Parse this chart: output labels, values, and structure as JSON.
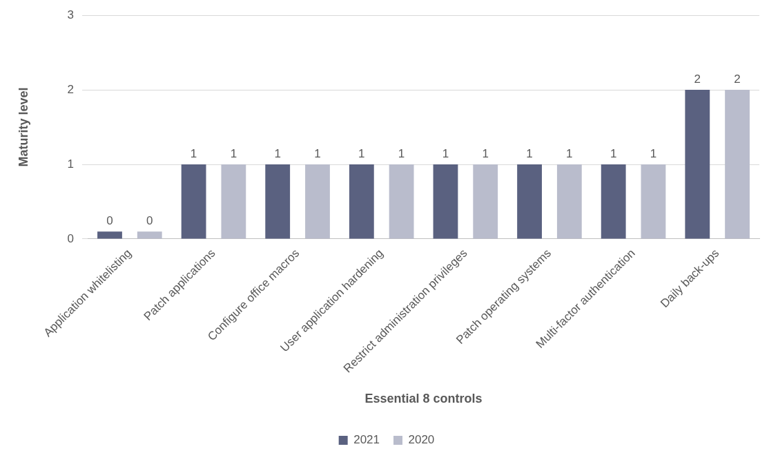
{
  "chart_data": {
    "type": "bar",
    "xlabel": "Essential 8 controls",
    "ylabel": "Maturity level",
    "categories": [
      "Application whitelisting",
      "Patch applications",
      "Configure office macros",
      "User application hardening",
      "Restrict administration privileges",
      "Patch operating systems",
      "Multi-factor authentication",
      "Daily back-ups"
    ],
    "series": [
      {
        "name": "2021",
        "color": "#5a6180",
        "values": [
          0.1,
          1,
          1,
          1,
          1,
          1,
          1,
          2
        ],
        "value_labels": [
          "0",
          "1",
          "1",
          "1",
          "1",
          "1",
          "1",
          "2"
        ]
      },
      {
        "name": "2020",
        "color": "#b9bccc",
        "values": [
          0.1,
          1,
          1,
          1,
          1,
          1,
          1,
          2
        ],
        "value_labels": [
          "0",
          "1",
          "1",
          "1",
          "1",
          "1",
          "1",
          "2"
        ]
      }
    ],
    "ylim": [
      0,
      3
    ],
    "yticks": [
      0,
      1,
      2,
      3
    ],
    "grid": "y",
    "legend": "bottom"
  }
}
